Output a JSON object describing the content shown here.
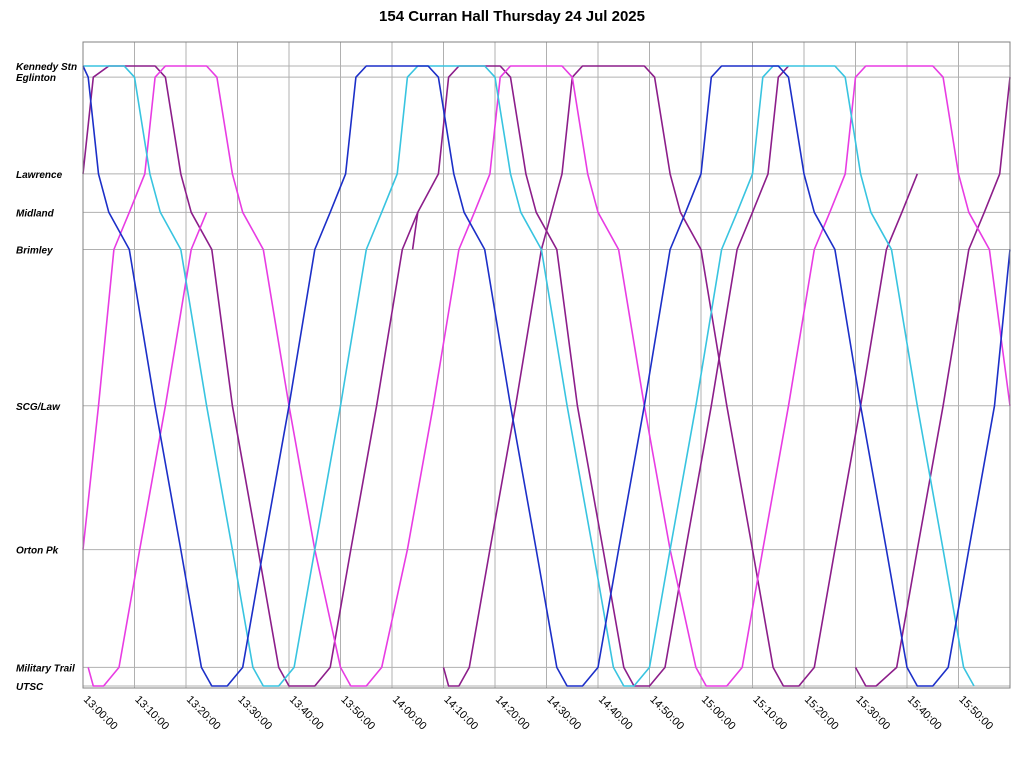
{
  "chart_data": {
    "type": "line",
    "title": "154 Curran Hall Thursday 24 Jul 2025",
    "x_start": "13:00:00",
    "x_end": "16:00:00",
    "x_ticks": [
      "13:00:00",
      "13:10:00",
      "13:20:00",
      "13:30:00",
      "13:40:00",
      "13:50:00",
      "14:00:00",
      "14:10:00",
      "14:20:00",
      "14:30:00",
      "14:40:00",
      "14:50:00",
      "15:00:00",
      "15:10:00",
      "15:20:00",
      "15:30:00",
      "15:40:00",
      "15:50:00"
    ],
    "y_axis_note": "distance along route",
    "stops": [
      {
        "name": "Kennedy Stn",
        "pos": 0.0
      },
      {
        "name": "Eglinton",
        "pos": 0.018
      },
      {
        "name": "Lawrence",
        "pos": 0.174
      },
      {
        "name": "Midland",
        "pos": 0.236
      },
      {
        "name": "Brimley",
        "pos": 0.296
      },
      {
        "name": "SCG/Law",
        "pos": 0.548
      },
      {
        "name": "Orton Pk",
        "pos": 0.78
      },
      {
        "name": "Military Trail",
        "pos": 0.97
      },
      {
        "name": "UTSC",
        "pos": 1.0
      }
    ],
    "grid": true,
    "colors": {
      "magenta": "#e83ce3",
      "cyan": "#38c4e0",
      "blue": "#1c2fc8",
      "purple": "#8c1e8a"
    },
    "series": [
      {
        "color": "purple",
        "points": [
          [
            "13:00",
            "Lawrence"
          ],
          [
            "13:02",
            "Eglinton"
          ],
          [
            "13:05",
            "Kennedy Stn"
          ],
          [
            "13:14",
            "Kennedy Stn"
          ],
          [
            "13:16",
            "Eglinton"
          ],
          [
            "13:19",
            "Lawrence"
          ],
          [
            "13:21",
            "Midland"
          ],
          [
            "13:25",
            "Brimley"
          ],
          [
            "13:29",
            "SCG/Law"
          ],
          [
            "13:34",
            "Orton Pk"
          ],
          [
            "13:38",
            "Military Trail"
          ],
          [
            "13:40",
            "UTSC"
          ],
          [
            "13:45",
            "UTSC"
          ],
          [
            "13:48",
            "Military Trail"
          ],
          [
            "13:52",
            "Orton Pk"
          ],
          [
            "13:57",
            "SCG/Law"
          ],
          [
            "14:02",
            "Brimley"
          ],
          [
            "14:05",
            "Midland"
          ],
          [
            "14:09",
            "Lawrence"
          ],
          [
            "14:11",
            "Eglinton"
          ],
          [
            "14:13",
            "Kennedy Stn"
          ],
          [
            "14:21",
            "Kennedy Stn"
          ],
          [
            "14:23",
            "Eglinton"
          ],
          [
            "14:26",
            "Lawrence"
          ],
          [
            "14:28",
            "Midland"
          ],
          [
            "14:32",
            "Brimley"
          ],
          [
            "14:36",
            "SCG/Law"
          ],
          [
            "14:41",
            "Orton Pk"
          ],
          [
            "14:45",
            "Military Trail"
          ],
          [
            "14:47",
            "UTSC"
          ],
          [
            "14:50",
            "UTSC"
          ],
          [
            "14:53",
            "Military Trail"
          ],
          [
            "14:57",
            "Orton Pk"
          ],
          [
            "15:02",
            "SCG/Law"
          ],
          [
            "15:07",
            "Brimley"
          ],
          [
            "15:10",
            "Midland"
          ],
          [
            "15:13",
            "Lawrence"
          ],
          [
            "15:15",
            "Eglinton"
          ],
          [
            "15:17",
            "Kennedy Stn"
          ]
        ]
      },
      {
        "color": "purple",
        "points": [
          [
            "14:04",
            "Brimley"
          ],
          [
            "14:05",
            "Midland"
          ]
        ]
      },
      {
        "color": "purple",
        "points": [
          [
            "14:10",
            "Military Trail"
          ],
          [
            "14:11",
            "UTSC"
          ],
          [
            "14:13",
            "UTSC"
          ],
          [
            "14:15",
            "Military Trail"
          ],
          [
            "14:19",
            "Orton Pk"
          ],
          [
            "14:24",
            "SCG/Law"
          ],
          [
            "14:29",
            "Brimley"
          ],
          [
            "14:31",
            "Midland"
          ],
          [
            "14:33",
            "Lawrence"
          ],
          [
            "14:35",
            "Eglinton"
          ],
          [
            "14:37",
            "Kennedy Stn"
          ],
          [
            "14:49",
            "Kennedy Stn"
          ],
          [
            "14:51",
            "Eglinton"
          ],
          [
            "14:54",
            "Lawrence"
          ],
          [
            "14:56",
            "Midland"
          ],
          [
            "15:00",
            "Brimley"
          ],
          [
            "15:05",
            "SCG/Law"
          ],
          [
            "15:10",
            "Orton Pk"
          ],
          [
            "15:14",
            "Military Trail"
          ],
          [
            "15:16",
            "UTSC"
          ],
          [
            "15:19",
            "UTSC"
          ],
          [
            "15:22",
            "Military Trail"
          ],
          [
            "15:26",
            "Orton Pk"
          ],
          [
            "15:31",
            "SCG/Law"
          ],
          [
            "15:36",
            "Brimley"
          ],
          [
            "15:39",
            "Midland"
          ],
          [
            "15:42",
            "Lawrence"
          ]
        ]
      },
      {
        "color": "purple",
        "points": [
          [
            "15:30",
            "Military Trail"
          ],
          [
            "15:32",
            "UTSC"
          ],
          [
            "15:34",
            "UTSC"
          ],
          [
            "15:38",
            "Military Trail"
          ],
          [
            "15:42",
            "Orton Pk"
          ],
          [
            "15:47",
            "SCG/Law"
          ],
          [
            "15:52",
            "Brimley"
          ],
          [
            "15:55",
            "Midland"
          ],
          [
            "15:58",
            "Lawrence"
          ],
          [
            "16:00",
            "Eglinton"
          ]
        ]
      },
      {
        "color": "magenta",
        "points": [
          [
            "13:00",
            "Orton Pk"
          ],
          [
            "13:03",
            "SCG/Law"
          ],
          [
            "13:06",
            "Brimley"
          ],
          [
            "13:09",
            "Midland"
          ],
          [
            "13:12",
            "Lawrence"
          ],
          [
            "13:14",
            "Eglinton"
          ],
          [
            "13:16",
            "Kennedy Stn"
          ],
          [
            "13:24",
            "Kennedy Stn"
          ],
          [
            "13:26",
            "Eglinton"
          ],
          [
            "13:29",
            "Lawrence"
          ],
          [
            "13:31",
            "Midland"
          ],
          [
            "13:35",
            "Brimley"
          ],
          [
            "13:40",
            "SCG/Law"
          ],
          [
            "13:45",
            "Orton Pk"
          ],
          [
            "13:50",
            "Military Trail"
          ],
          [
            "13:52",
            "UTSC"
          ],
          [
            "13:55",
            "UTSC"
          ],
          [
            "13:58",
            "Military Trail"
          ],
          [
            "14:03",
            "Orton Pk"
          ],
          [
            "14:08",
            "SCG/Law"
          ],
          [
            "14:13",
            "Brimley"
          ],
          [
            "14:16",
            "Midland"
          ],
          [
            "14:19",
            "Lawrence"
          ],
          [
            "14:21",
            "Eglinton"
          ],
          [
            "14:23",
            "Kennedy Stn"
          ],
          [
            "14:33",
            "Kennedy Stn"
          ],
          [
            "14:35",
            "Eglinton"
          ],
          [
            "14:38",
            "Lawrence"
          ],
          [
            "14:40",
            "Midland"
          ],
          [
            "14:44",
            "Brimley"
          ],
          [
            "14:49",
            "SCG/Law"
          ],
          [
            "14:54",
            "Orton Pk"
          ],
          [
            "14:59",
            "Military Trail"
          ],
          [
            "15:01",
            "UTSC"
          ],
          [
            "15:05",
            "UTSC"
          ],
          [
            "15:08",
            "Military Trail"
          ],
          [
            "15:12",
            "Orton Pk"
          ],
          [
            "15:17",
            "SCG/Law"
          ],
          [
            "15:22",
            "Brimley"
          ],
          [
            "15:25",
            "Midland"
          ],
          [
            "15:28",
            "Lawrence"
          ],
          [
            "15:30",
            "Eglinton"
          ],
          [
            "15:32",
            "Kennedy Stn"
          ],
          [
            "15:45",
            "Kennedy Stn"
          ],
          [
            "15:47",
            "Eglinton"
          ],
          [
            "15:50",
            "Lawrence"
          ],
          [
            "15:52",
            "Midland"
          ],
          [
            "15:56",
            "Brimley"
          ],
          [
            "16:00",
            "SCG/Law"
          ]
        ]
      },
      {
        "color": "magenta",
        "points": [
          [
            "13:01",
            "Military Trail"
          ],
          [
            "13:02",
            "UTSC"
          ],
          [
            "13:04",
            "UTSC"
          ],
          [
            "13:07",
            "Military Trail"
          ],
          [
            "13:11",
            "Orton Pk"
          ],
          [
            "13:16",
            "SCG/Law"
          ],
          [
            "13:21",
            "Brimley"
          ],
          [
            "13:24",
            "Midland"
          ]
        ]
      },
      {
        "color": "cyan",
        "points": [
          [
            "13:00",
            "Kennedy Stn"
          ],
          [
            "13:08",
            "Kennedy Stn"
          ],
          [
            "13:10",
            "Eglinton"
          ],
          [
            "13:13",
            "Lawrence"
          ],
          [
            "13:15",
            "Midland"
          ],
          [
            "13:19",
            "Brimley"
          ],
          [
            "13:24",
            "SCG/Law"
          ],
          [
            "13:29",
            "Orton Pk"
          ],
          [
            "13:33",
            "Military Trail"
          ],
          [
            "13:35",
            "UTSC"
          ],
          [
            "13:38",
            "UTSC"
          ],
          [
            "13:41",
            "Military Trail"
          ],
          [
            "13:45",
            "Orton Pk"
          ],
          [
            "13:50",
            "SCG/Law"
          ],
          [
            "13:55",
            "Brimley"
          ],
          [
            "13:58",
            "Midland"
          ],
          [
            "14:01",
            "Lawrence"
          ],
          [
            "14:03",
            "Eglinton"
          ],
          [
            "14:05",
            "Kennedy Stn"
          ],
          [
            "14:18",
            "Kennedy Stn"
          ],
          [
            "14:20",
            "Eglinton"
          ],
          [
            "14:23",
            "Lawrence"
          ],
          [
            "14:25",
            "Midland"
          ],
          [
            "14:29",
            "Brimley"
          ],
          [
            "14:34",
            "SCG/Law"
          ],
          [
            "14:39",
            "Orton Pk"
          ],
          [
            "14:43",
            "Military Trail"
          ],
          [
            "14:45",
            "UTSC"
          ],
          [
            "14:47",
            "UTSC"
          ],
          [
            "14:50",
            "Military Trail"
          ],
          [
            "14:54",
            "Orton Pk"
          ],
          [
            "14:59",
            "SCG/Law"
          ],
          [
            "15:04",
            "Brimley"
          ],
          [
            "15:07",
            "Midland"
          ],
          [
            "15:10",
            "Lawrence"
          ],
          [
            "15:12",
            "Eglinton"
          ],
          [
            "15:14",
            "Kennedy Stn"
          ],
          [
            "15:26",
            "Kennedy Stn"
          ],
          [
            "15:28",
            "Eglinton"
          ],
          [
            "15:31",
            "Lawrence"
          ],
          [
            "15:33",
            "Midland"
          ],
          [
            "15:37",
            "Brimley"
          ],
          [
            "15:42",
            "SCG/Law"
          ],
          [
            "15:47",
            "Orton Pk"
          ],
          [
            "15:51",
            "Military Trail"
          ],
          [
            "15:53",
            "UTSC"
          ]
        ]
      },
      {
        "color": "blue",
        "points": [
          [
            "13:00",
            "Kennedy Stn"
          ],
          [
            "13:01",
            "Eglinton"
          ],
          [
            "13:03",
            "Lawrence"
          ],
          [
            "13:05",
            "Midland"
          ],
          [
            "13:09",
            "Brimley"
          ],
          [
            "13:14",
            "SCG/Law"
          ],
          [
            "13:19",
            "Orton Pk"
          ],
          [
            "13:23",
            "Military Trail"
          ],
          [
            "13:25",
            "UTSC"
          ],
          [
            "13:28",
            "UTSC"
          ],
          [
            "13:31",
            "Military Trail"
          ],
          [
            "13:35",
            "Orton Pk"
          ],
          [
            "13:40",
            "SCG/Law"
          ],
          [
            "13:45",
            "Brimley"
          ],
          [
            "13:48",
            "Midland"
          ],
          [
            "13:51",
            "Lawrence"
          ],
          [
            "13:53",
            "Eglinton"
          ],
          [
            "13:55",
            "Kennedy Stn"
          ],
          [
            "14:07",
            "Kennedy Stn"
          ],
          [
            "14:09",
            "Eglinton"
          ],
          [
            "14:12",
            "Lawrence"
          ],
          [
            "14:14",
            "Midland"
          ],
          [
            "14:18",
            "Brimley"
          ],
          [
            "14:23",
            "SCG/Law"
          ],
          [
            "14:28",
            "Orton Pk"
          ],
          [
            "14:32",
            "Military Trail"
          ],
          [
            "14:34",
            "UTSC"
          ],
          [
            "14:37",
            "UTSC"
          ],
          [
            "14:40",
            "Military Trail"
          ],
          [
            "14:44",
            "Orton Pk"
          ],
          [
            "14:49",
            "SCG/Law"
          ],
          [
            "14:54",
            "Brimley"
          ],
          [
            "14:57",
            "Midland"
          ],
          [
            "15:00",
            "Lawrence"
          ],
          [
            "15:02",
            "Eglinton"
          ],
          [
            "15:04",
            "Kennedy Stn"
          ],
          [
            "15:15",
            "Kennedy Stn"
          ],
          [
            "15:17",
            "Eglinton"
          ],
          [
            "15:20",
            "Lawrence"
          ],
          [
            "15:22",
            "Midland"
          ],
          [
            "15:26",
            "Brimley"
          ],
          [
            "15:31",
            "SCG/Law"
          ],
          [
            "15:36",
            "Orton Pk"
          ],
          [
            "15:40",
            "Military Trail"
          ],
          [
            "15:42",
            "UTSC"
          ],
          [
            "15:45",
            "UTSC"
          ],
          [
            "15:48",
            "Military Trail"
          ],
          [
            "15:52",
            "Orton Pk"
          ],
          [
            "15:57",
            "SCG/Law"
          ],
          [
            "16:00",
            "Brimley"
          ]
        ]
      }
    ]
  }
}
